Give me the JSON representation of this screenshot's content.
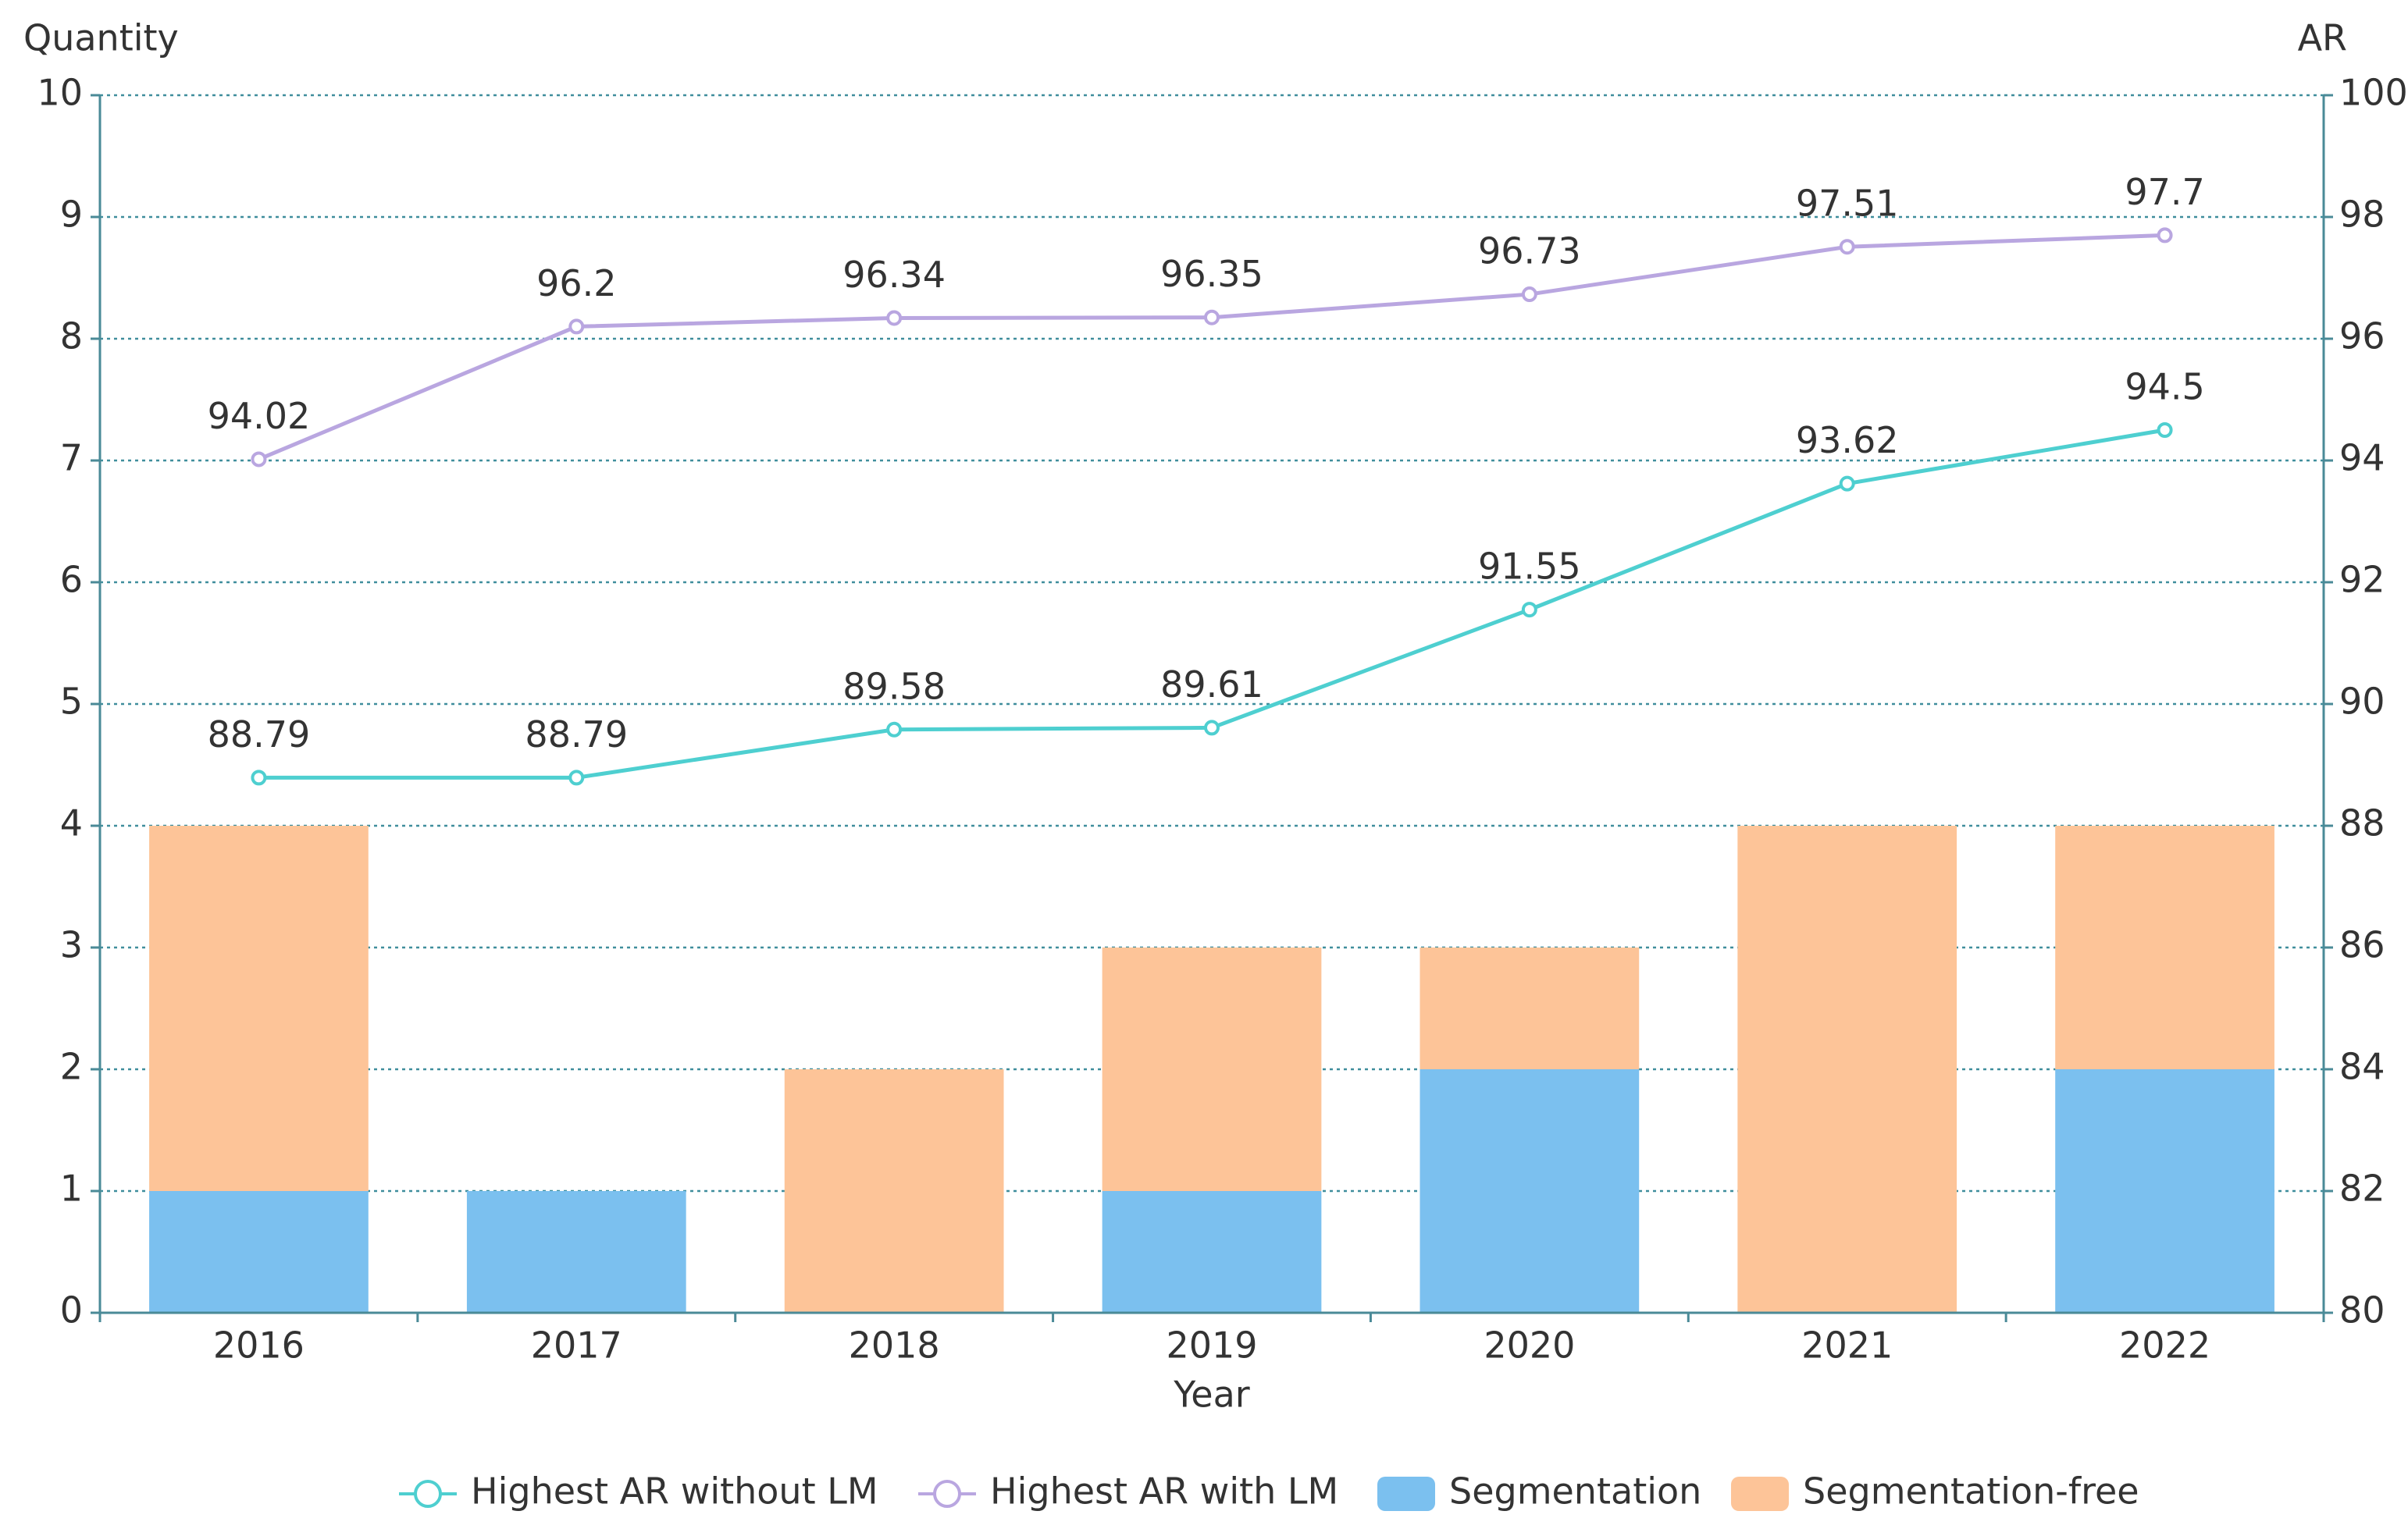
{
  "chart_data": {
    "type": "bar",
    "x_label": "Year",
    "y_label": "Quantity",
    "y2_label": "AR",
    "categories": [
      "2016",
      "2017",
      "2018",
      "2019",
      "2020",
      "2021",
      "2022"
    ],
    "series": [
      {
        "name": "Highest AR without LM",
        "type": "line",
        "axis": "y2",
        "color": "#4ecfd0",
        "values": [
          88.79,
          88.79,
          89.58,
          89.61,
          91.55,
          93.62,
          94.5
        ]
      },
      {
        "name": "Highest AR with LM",
        "type": "line",
        "axis": "y2",
        "color": "#b9a6e0",
        "values": [
          94.02,
          96.2,
          96.34,
          96.35,
          96.73,
          97.51,
          97.7
        ]
      },
      {
        "name": "Segmentation",
        "type": "bar",
        "color": "#7bc0ef",
        "values": [
          1,
          1,
          0,
          1,
          2,
          0,
          2
        ]
      },
      {
        "name": "Segmentation-free",
        "type": "bar",
        "color": "#fdc498",
        "values": [
          3,
          0,
          2,
          2,
          1,
          4,
          2
        ]
      }
    ],
    "stacked": true,
    "ylim": [
      0,
      10
    ],
    "yticks": [
      0,
      1,
      2,
      3,
      4,
      5,
      6,
      7,
      8,
      9,
      10
    ],
    "y2lim": [
      80,
      100
    ],
    "y2ticks": [
      80,
      82,
      84,
      86,
      88,
      90,
      92,
      94,
      96,
      98,
      100
    ],
    "grid": true
  }
}
